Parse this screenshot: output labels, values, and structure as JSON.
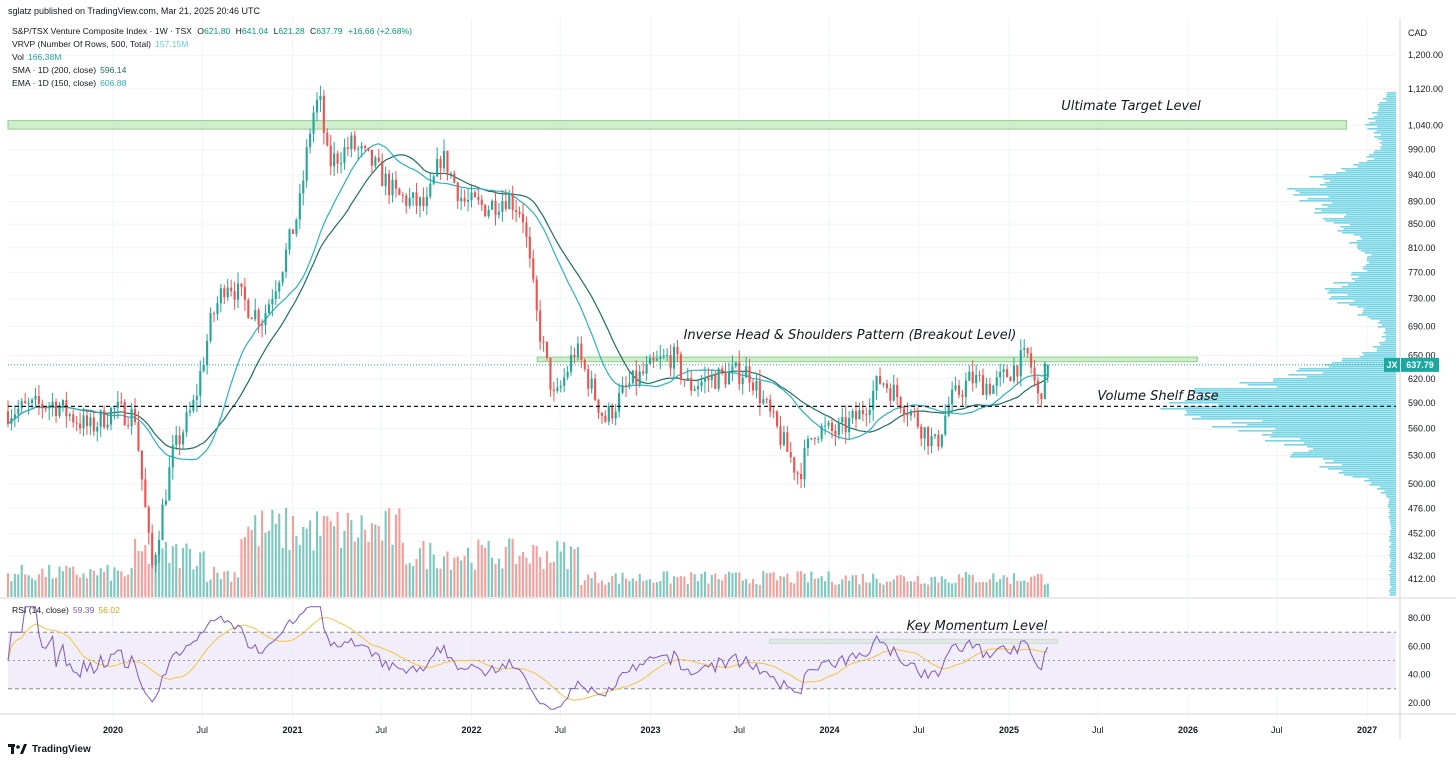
{
  "header": {
    "publisher": "sglatz published on TradingView.com, Mar 21, 2025 20:46 UTC"
  },
  "legend": {
    "main": {
      "symbol": "S&P/TSX Venture Composite Index · 1W · TSX",
      "open_label": "O",
      "open": "621.80",
      "high_label": "H",
      "high": "641.04",
      "low_label": "L",
      "low": "621.28",
      "close_label": "C",
      "close": "637.79",
      "change": "+16.66 (+2.68%)"
    },
    "vrvp": {
      "label": "VRVP (Number Of Rows, 500, Total)",
      "value": "157.15M"
    },
    "vol": {
      "label": "Vol",
      "value": "166.38M"
    },
    "sma": {
      "label": "SMA · 1D (200, close)",
      "value": "596.14"
    },
    "ema": {
      "label": "EMA · 1D (150, close)",
      "value": "606.88"
    }
  },
  "footer": {
    "brand": "TradingView"
  },
  "colors": {
    "up": "#26a69a",
    "down": "#ef5350",
    "vol_up": "#7dc8bf",
    "vol_down": "#f4a09c",
    "sma": "#1e6e5f",
    "ema": "#2bb0c4",
    "rsi": "#7e57c2",
    "rsi_ma": "#f5c342",
    "vrvp": "#5fcfe0",
    "zone_fill": "#c8ecc4",
    "zone_stroke": "#7fc57a",
    "price_tag": "#1aa8a0"
  },
  "chart_data": {
    "type": "candlestick",
    "title": "S&P/TSX Venture Composite Index",
    "interval": "1W",
    "exchange": "TSX",
    "currency": "CAD",
    "y_scale": "log",
    "ylim": [
      395,
      1230
    ],
    "y_ticks": [
      "1,200.00",
      "1,120.00",
      "1,040.00",
      "990.00",
      "940.00",
      "890.00",
      "850.00",
      "810.00",
      "770.00",
      "730.00",
      "690.00",
      "650.00",
      "620.00",
      "590.00",
      "560.00",
      "530.00",
      "500.00",
      "476.00",
      "452.00",
      "432.00",
      "412.00"
    ],
    "x_ticks": [
      "2020",
      "Jul",
      "2021",
      "Jul",
      "2022",
      "Jul",
      "2023",
      "Jul",
      "2024",
      "Jul",
      "2025",
      "Jul",
      "2026",
      "Jul",
      "2027"
    ],
    "last_price": {
      "label": "JX",
      "value": "637.79"
    },
    "price_path": [
      [
        "2019-06-01",
        580
      ],
      [
        "2019-09-01",
        590
      ],
      [
        "2019-11-15",
        560
      ],
      [
        "2020-01-01",
        582
      ],
      [
        "2020-02-15",
        575
      ],
      [
        "2020-03-20",
        420
      ],
      [
        "2020-05-01",
        530
      ],
      [
        "2020-06-15",
        590
      ],
      [
        "2020-07-20",
        700
      ],
      [
        "2020-08-20",
        760
      ],
      [
        "2020-10-01",
        720
      ],
      [
        "2020-11-01",
        700
      ],
      [
        "2020-12-15",
        790
      ],
      [
        "2021-01-15",
        880
      ],
      [
        "2021-02-10",
        1060
      ],
      [
        "2021-02-25",
        1100
      ],
      [
        "2021-03-15",
        960
      ],
      [
        "2021-05-01",
        1000
      ],
      [
        "2021-06-15",
        960
      ],
      [
        "2021-08-01",
        900
      ],
      [
        "2021-10-01",
        880
      ],
      [
        "2021-11-01",
        980
      ],
      [
        "2021-12-15",
        890
      ],
      [
        "2022-02-01",
        880
      ],
      [
        "2022-03-15",
        900
      ],
      [
        "2022-04-15",
        870
      ],
      [
        "2022-05-15",
        700
      ],
      [
        "2022-06-20",
        590
      ],
      [
        "2022-08-01",
        660
      ],
      [
        "2022-09-30",
        570
      ],
      [
        "2022-11-15",
        610
      ],
      [
        "2023-01-15",
        640
      ],
      [
        "2023-02-15",
        650
      ],
      [
        "2023-03-20",
        610
      ],
      [
        "2023-05-01",
        620
      ],
      [
        "2023-07-20",
        630
      ],
      [
        "2023-08-20",
        590
      ],
      [
        "2023-10-30",
        510
      ],
      [
        "2023-12-01",
        560
      ],
      [
        "2024-01-15",
        555
      ],
      [
        "2024-03-01",
        575
      ],
      [
        "2024-04-15",
        620
      ],
      [
        "2024-06-01",
        590
      ],
      [
        "2024-08-05",
        540
      ],
      [
        "2024-09-01",
        590
      ],
      [
        "2024-10-15",
        620
      ],
      [
        "2024-12-01",
        610
      ],
      [
        "2025-01-20",
        640
      ],
      [
        "2025-02-10",
        650
      ],
      [
        "2025-03-01",
        595
      ],
      [
        "2025-03-21",
        637.79
      ]
    ],
    "zones": [
      {
        "label": "Ultimate Target Level",
        "y_range": [
          1032,
          1050
        ],
        "x_range": [
          "2019-06-01",
          "2026-11-20"
        ]
      },
      {
        "label": "Inverse Head & Shoulders Pattern (Breakout Level)",
        "y_range": [
          642,
          648
        ],
        "x_range": [
          "2022-05-15",
          "2026-01-20"
        ]
      }
    ],
    "levels": [
      {
        "label": "Volume Shelf Base",
        "value": 586
      }
    ],
    "rsi": {
      "label": "RSI (14, close)",
      "value": "59.39",
      "ma_value": "56.02",
      "ylim": [
        10,
        90
      ],
      "y_ticks": [
        "80.00",
        "60.00",
        "40.00",
        "20.00"
      ],
      "bands": [
        30,
        50,
        70
      ],
      "zone": {
        "label": "Key Momentum Level",
        "y_range": [
          62,
          65
        ],
        "x_range": [
          "2023-09-01",
          "2025-04-10"
        ]
      }
    }
  }
}
